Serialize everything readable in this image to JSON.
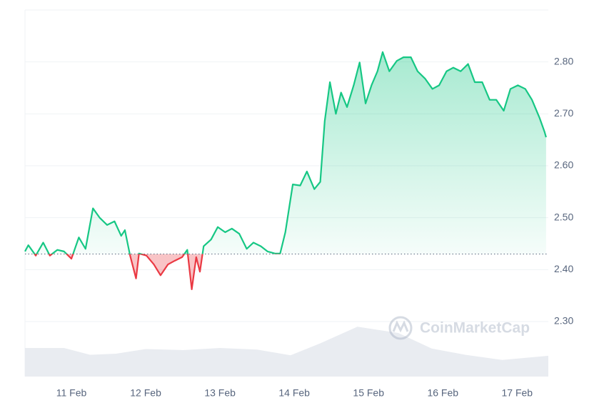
{
  "chart_data": {
    "type": "line",
    "watermark": "CoinMarketCap",
    "baseline": 2.43,
    "up_color": "#16c784",
    "down_color": "#ea3943",
    "volume_color": "#e9ecf1",
    "x": [
      10.375,
      10.42,
      10.52,
      10.62,
      10.71,
      10.81,
      10.9,
      11.0,
      11.1,
      11.19,
      11.29,
      11.38,
      11.48,
      11.58,
      11.67,
      11.72,
      11.79,
      11.87,
      11.91,
      12.01,
      12.11,
      12.2,
      12.3,
      12.39,
      12.49,
      12.56,
      12.62,
      12.68,
      12.73,
      12.78,
      12.88,
      12.97,
      13.07,
      13.16,
      13.26,
      13.36,
      13.45,
      13.55,
      13.64,
      13.74,
      13.81,
      13.88,
      13.98,
      14.08,
      14.17,
      14.27,
      14.35,
      14.41,
      14.48,
      14.56,
      14.63,
      14.71,
      14.8,
      14.88,
      14.96,
      15.04,
      15.12,
      15.19,
      15.28,
      15.38,
      15.47,
      15.57,
      15.66,
      15.76,
      15.86,
      15.95,
      16.05,
      16.14,
      16.24,
      16.34,
      16.43,
      16.53,
      16.63,
      16.72,
      16.82,
      16.91,
      17.01,
      17.11,
      17.2,
      17.3,
      17.37,
      17.39
    ],
    "values": [
      2.435,
      2.447,
      2.427,
      2.452,
      2.427,
      2.438,
      2.435,
      2.421,
      2.462,
      2.44,
      2.518,
      2.5,
      2.486,
      2.493,
      2.465,
      2.476,
      2.427,
      2.383,
      2.431,
      2.427,
      2.41,
      2.389,
      2.41,
      2.417,
      2.424,
      2.438,
      2.362,
      2.424,
      2.396,
      2.445,
      2.458,
      2.482,
      2.472,
      2.479,
      2.469,
      2.44,
      2.452,
      2.445,
      2.435,
      2.431,
      2.431,
      2.472,
      2.564,
      2.562,
      2.589,
      2.555,
      2.569,
      2.686,
      2.761,
      2.7,
      2.741,
      2.713,
      2.755,
      2.799,
      2.72,
      2.755,
      2.782,
      2.819,
      2.782,
      2.802,
      2.809,
      2.809,
      2.782,
      2.768,
      2.748,
      2.755,
      2.782,
      2.789,
      2.782,
      2.796,
      2.761,
      2.761,
      2.727,
      2.727,
      2.706,
      2.748,
      2.755,
      2.748,
      2.727,
      2.693,
      2.665,
      2.655
    ],
    "volume": {
      "x": [
        10.375,
        10.9,
        11.25,
        11.6,
        12.0,
        12.5,
        13.0,
        13.5,
        13.95,
        14.35,
        14.85,
        15.4,
        15.85,
        16.3,
        16.8,
        17.42
      ],
      "values": [
        2.249,
        2.249,
        2.236,
        2.238,
        2.247,
        2.245,
        2.249,
        2.246,
        2.235,
        2.258,
        2.29,
        2.278,
        2.248,
        2.236,
        2.226,
        2.234
      ]
    },
    "xlim": [
      10.375,
      17.42
    ],
    "ylim": [
      2.194,
      2.9
    ],
    "xticks": [
      {
        "value": 11,
        "label": "11 Feb"
      },
      {
        "value": 12,
        "label": "12 Feb"
      },
      {
        "value": 13,
        "label": "13 Feb"
      },
      {
        "value": 14,
        "label": "14 Feb"
      },
      {
        "value": 15,
        "label": "15 Feb"
      },
      {
        "value": 16,
        "label": "16 Feb"
      },
      {
        "value": 17,
        "label": "17 Feb"
      }
    ],
    "yticks": [
      {
        "value": 2.3,
        "label": "2.30"
      },
      {
        "value": 2.4,
        "label": "2.40"
      },
      {
        "value": 2.5,
        "label": "2.50"
      },
      {
        "value": 2.6,
        "label": "2.60"
      },
      {
        "value": 2.7,
        "label": "2.70"
      },
      {
        "value": 2.8,
        "label": "2.80"
      }
    ],
    "grid": true
  }
}
